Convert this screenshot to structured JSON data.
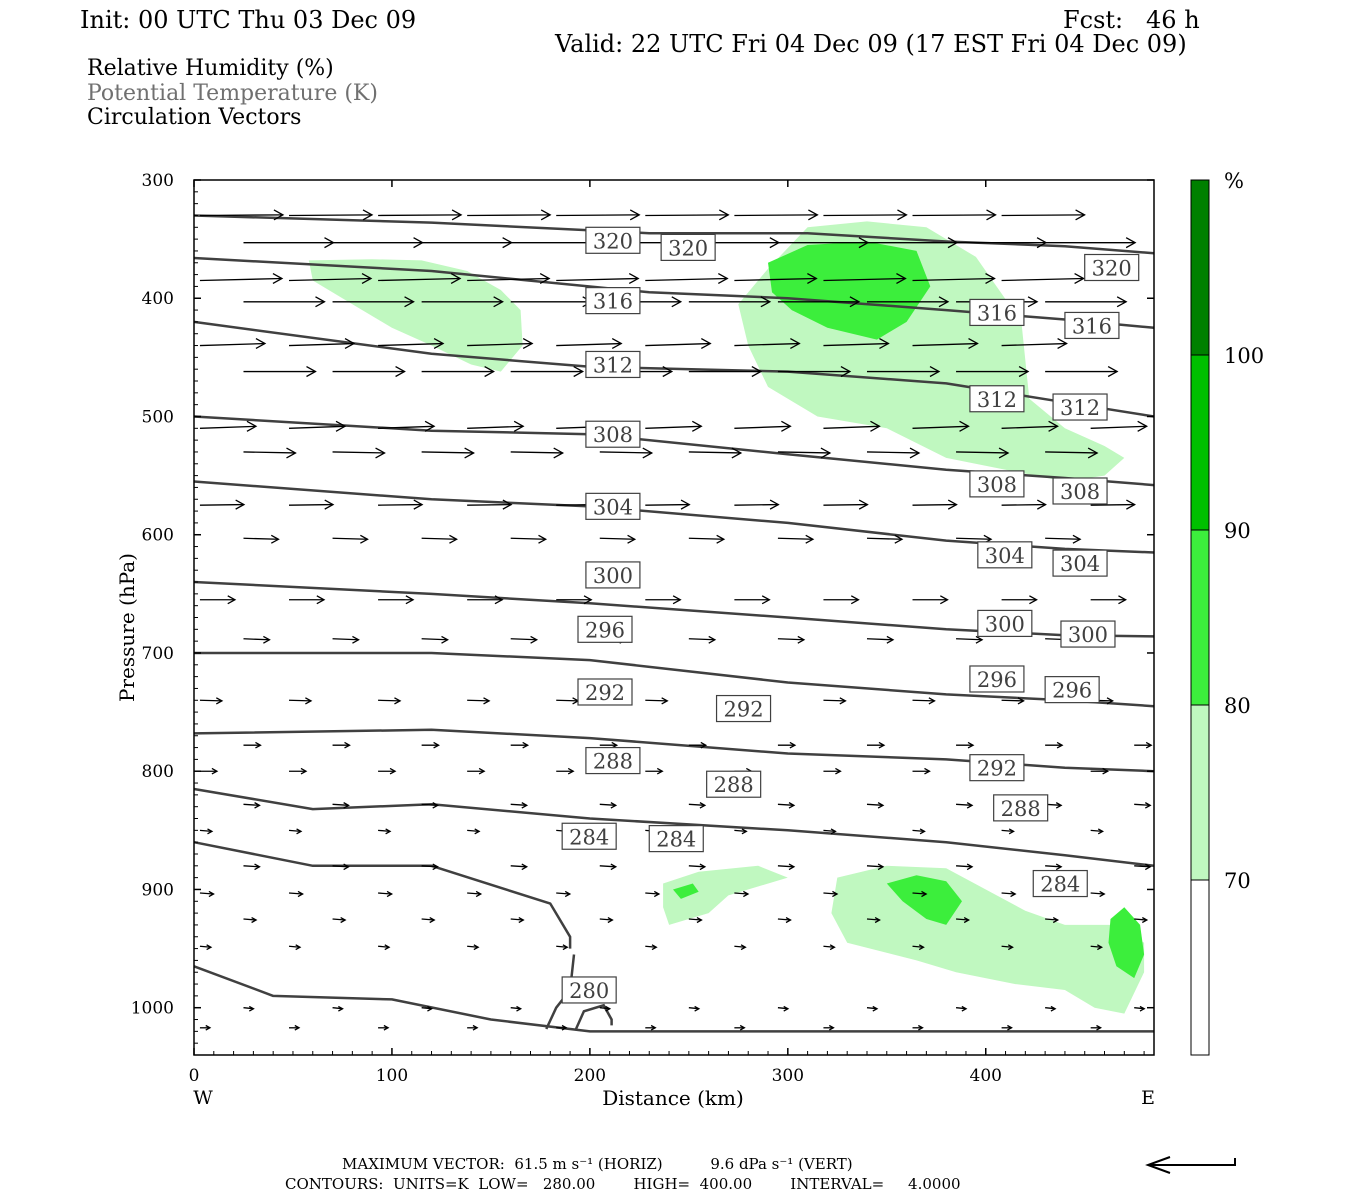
{
  "header": {
    "init": "Init: 00 UTC Thu 03 Dec 09",
    "fcst": "Fcst:   46 h",
    "valid": "Valid: 22 UTC Fri 04 Dec 09 (17 EST Fri 04 Dec 09)",
    "fields": [
      "Relative Humidity (%)",
      "Potential Temperature (K)",
      "Circulation Vectors"
    ]
  },
  "footer": {
    "line1": "MAXIMUM VECTOR:  61.5 m s⁻¹ (HORIZ)          9.6 dPa s⁻¹ (VERT)",
    "line2": "CONTOURS:  UNITS=K  LOW=   280.00        HIGH=  400.00        INTERVAL=     4.0000"
  },
  "colors": {
    "rh_70_80": "#c0f8c0",
    "rh_80_90": "#3cee3c",
    "rh_90_100": "#00c000",
    "rh_100": "#008000",
    "contour": "#404040",
    "frame": "#000000"
  },
  "chart_data": {
    "type": "cross-section",
    "xlabel": "Distance (km)",
    "ylabel": "Pressure (hPa)",
    "xlim": [
      0,
      485
    ],
    "ylim": [
      1040,
      300
    ],
    "x_ticks": [
      0,
      100,
      200,
      300,
      400
    ],
    "y_ticks": [
      300,
      400,
      500,
      600,
      700,
      800,
      900,
      1000
    ],
    "x_end_labels": [
      "W",
      "E"
    ],
    "colorbar": {
      "unit": "%",
      "levels": [
        70,
        80,
        90,
        100
      ],
      "colors": [
        "#ffffff",
        "#c0f8c0",
        "#3cee3c",
        "#00c000",
        "#008000"
      ]
    },
    "theta_contours": [
      {
        "level": 320,
        "points": [
          [
            0,
            330
          ],
          [
            120,
            336
          ],
          [
            230,
            345
          ],
          [
            310,
            345
          ],
          [
            380,
            352
          ],
          [
            440,
            356
          ],
          [
            485,
            362
          ]
        ]
      },
      {
        "level": 316,
        "points": [
          [
            0,
            366
          ],
          [
            120,
            377
          ],
          [
            230,
            395
          ],
          [
            300,
            400
          ],
          [
            380,
            410
          ],
          [
            440,
            418
          ],
          [
            485,
            425
          ]
        ]
      },
      {
        "level": 312,
        "points": [
          [
            0,
            420
          ],
          [
            120,
            447
          ],
          [
            200,
            458
          ],
          [
            300,
            462
          ],
          [
            380,
            472
          ],
          [
            440,
            488
          ],
          [
            485,
            500
          ]
        ]
      },
      {
        "level": 308,
        "points": [
          [
            0,
            500
          ],
          [
            120,
            512
          ],
          [
            200,
            515
          ],
          [
            300,
            532
          ],
          [
            380,
            545
          ],
          [
            440,
            552
          ],
          [
            485,
            558
          ]
        ]
      },
      {
        "level": 304,
        "points": [
          [
            0,
            555
          ],
          [
            120,
            570
          ],
          [
            200,
            576
          ],
          [
            300,
            590
          ],
          [
            380,
            605
          ],
          [
            440,
            612
          ],
          [
            485,
            615
          ]
        ]
      },
      {
        "level": 300,
        "points": [
          [
            0,
            640
          ],
          [
            120,
            650
          ],
          [
            200,
            658
          ],
          [
            300,
            670
          ],
          [
            380,
            680
          ],
          [
            440,
            685
          ],
          [
            485,
            686
          ]
        ]
      },
      {
        "level": 296,
        "points": [
          [
            0,
            700
          ],
          [
            120,
            700
          ],
          [
            200,
            706
          ],
          [
            300,
            725
          ],
          [
            380,
            735
          ],
          [
            440,
            740
          ],
          [
            485,
            745
          ]
        ]
      },
      {
        "level": 292,
        "points": [
          [
            0,
            768
          ],
          [
            120,
            765
          ],
          [
            200,
            772
          ],
          [
            300,
            785
          ],
          [
            380,
            790
          ],
          [
            440,
            797
          ],
          [
            485,
            800
          ]
        ]
      },
      {
        "level": 288,
        "points": [
          [
            0,
            815
          ],
          [
            60,
            832
          ],
          [
            120,
            828
          ],
          [
            200,
            840
          ],
          [
            300,
            850
          ],
          [
            380,
            860
          ],
          [
            440,
            871
          ],
          [
            485,
            880
          ]
        ]
      },
      {
        "level": 284,
        "points": [
          [
            0,
            860
          ],
          [
            60,
            880
          ],
          [
            120,
            880
          ],
          [
            180,
            912
          ],
          [
            190,
            940
          ],
          [
            190,
            950
          ]
        ]
      },
      {
        "level": 280,
        "points": [
          [
            0,
            965
          ],
          [
            40,
            990
          ],
          [
            100,
            993
          ],
          [
            150,
            1010
          ],
          [
            200,
            1020
          ],
          [
            300,
            1020
          ],
          [
            485,
            1020
          ]
        ]
      }
    ],
    "contour_labels": [
      {
        "text": "320",
        "x": 198,
        "p": 351
      },
      {
        "text": "320",
        "x": 236,
        "p": 357
      },
      {
        "text": "320",
        "x": 450,
        "p": 374
      },
      {
        "text": "316",
        "x": 198,
        "p": 402
      },
      {
        "text": "316",
        "x": 392,
        "p": 412
      },
      {
        "text": "316",
        "x": 440,
        "p": 423
      },
      {
        "text": "312",
        "x": 198,
        "p": 456
      },
      {
        "text": "312",
        "x": 392,
        "p": 485
      },
      {
        "text": "312",
        "x": 434,
        "p": 492
      },
      {
        "text": "308",
        "x": 198,
        "p": 515
      },
      {
        "text": "308",
        "x": 392,
        "p": 557
      },
      {
        "text": "308",
        "x": 434,
        "p": 563
      },
      {
        "text": "304",
        "x": 198,
        "p": 576
      },
      {
        "text": "304",
        "x": 396,
        "p": 617
      },
      {
        "text": "304",
        "x": 434,
        "p": 624
      },
      {
        "text": "300",
        "x": 198,
        "p": 634
      },
      {
        "text": "300",
        "x": 396,
        "p": 675
      },
      {
        "text": "300",
        "x": 438,
        "p": 684
      },
      {
        "text": "296",
        "x": 194,
        "p": 680
      },
      {
        "text": "296",
        "x": 392,
        "p": 722
      },
      {
        "text": "296",
        "x": 430,
        "p": 731
      },
      {
        "text": "292",
        "x": 194,
        "p": 733
      },
      {
        "text": "292",
        "x": 264,
        "p": 747
      },
      {
        "text": "292",
        "x": 392,
        "p": 797
      },
      {
        "text": "288",
        "x": 198,
        "p": 791
      },
      {
        "text": "288",
        "x": 259,
        "p": 811
      },
      {
        "text": "288",
        "x": 404,
        "p": 831
      },
      {
        "text": "284",
        "x": 186,
        "p": 855
      },
      {
        "text": "284",
        "x": 230,
        "p": 857
      },
      {
        "text": "284",
        "x": 424,
        "p": 895
      },
      {
        "text": "280",
        "x": 186,
        "p": 985
      }
    ],
    "rh_regions": [
      {
        "level": 70,
        "points": [
          [
            58,
            368
          ],
          [
            90,
            367
          ],
          [
            115,
            368
          ],
          [
            138,
            377
          ],
          [
            155,
            393
          ],
          [
            165,
            410
          ],
          [
            166,
            440
          ],
          [
            155,
            462
          ],
          [
            140,
            456
          ],
          [
            120,
            440
          ],
          [
            100,
            425
          ],
          [
            80,
            405
          ],
          [
            60,
            385
          ]
        ]
      },
      {
        "level": 70,
        "points": [
          [
            290,
            375
          ],
          [
            310,
            340
          ],
          [
            340,
            335
          ],
          [
            370,
            340
          ],
          [
            395,
            365
          ],
          [
            418,
            420
          ],
          [
            422,
            485
          ],
          [
            440,
            510
          ],
          [
            460,
            525
          ],
          [
            470,
            535
          ],
          [
            460,
            550
          ],
          [
            440,
            555
          ],
          [
            410,
            545
          ],
          [
            380,
            535
          ],
          [
            350,
            510
          ],
          [
            315,
            500
          ],
          [
            290,
            475
          ],
          [
            280,
            440
          ],
          [
            275,
            405
          ]
        ]
      },
      {
        "level": 80,
        "points": [
          [
            290,
            370
          ],
          [
            310,
            355
          ],
          [
            340,
            352
          ],
          [
            365,
            360
          ],
          [
            372,
            390
          ],
          [
            360,
            420
          ],
          [
            345,
            435
          ],
          [
            320,
            425
          ],
          [
            302,
            410
          ],
          [
            292,
            395
          ]
        ]
      },
      {
        "level": 70,
        "points": [
          [
            237,
            895
          ],
          [
            255,
            885
          ],
          [
            285,
            880
          ],
          [
            300,
            890
          ],
          [
            270,
            905
          ],
          [
            260,
            920
          ],
          [
            240,
            930
          ],
          [
            237,
            915
          ]
        ]
      },
      {
        "level": 70,
        "points": [
          [
            325,
            890
          ],
          [
            350,
            880
          ],
          [
            380,
            882
          ],
          [
            400,
            900
          ],
          [
            420,
            918
          ],
          [
            440,
            930
          ],
          [
            465,
            930
          ],
          [
            480,
            945
          ],
          [
            480,
            970
          ],
          [
            470,
            1005
          ],
          [
            455,
            1000
          ],
          [
            440,
            985
          ],
          [
            415,
            980
          ],
          [
            385,
            970
          ],
          [
            365,
            960
          ],
          [
            330,
            945
          ],
          [
            322,
            920
          ]
        ]
      },
      {
        "level": 80,
        "points": [
          [
            350,
            895
          ],
          [
            365,
            888
          ],
          [
            380,
            893
          ],
          [
            388,
            910
          ],
          [
            380,
            930
          ],
          [
            370,
            925
          ],
          [
            358,
            910
          ]
        ]
      },
      {
        "level": 80,
        "points": [
          [
            463,
            925
          ],
          [
            470,
            915
          ],
          [
            478,
            930
          ],
          [
            480,
            955
          ],
          [
            475,
            975
          ],
          [
            466,
            965
          ],
          [
            462,
            945
          ]
        ]
      },
      {
        "level": 80,
        "points": [
          [
            242,
            900
          ],
          [
            252,
            895
          ],
          [
            255,
            902
          ],
          [
            246,
            908
          ]
        ]
      }
    ],
    "vectors_note": "circulation vectors drawn as arrows (direction toward E, length proportional to speed)"
  }
}
